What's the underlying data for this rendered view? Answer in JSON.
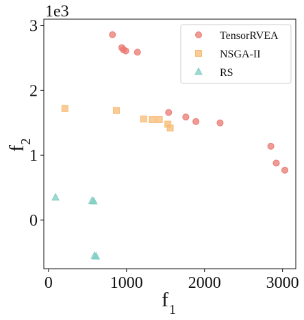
{
  "chart_data": {
    "type": "scatter",
    "title": "",
    "xlabel": "f",
    "xlabel_sub": "1",
    "ylabel": "f",
    "ylabel_sub": "2",
    "y_scale_label": "1e3",
    "xlim": [
      -60,
      3170
    ],
    "ylim": [
      -0.75,
      3.1
    ],
    "xticks": [
      0,
      1000,
      2000,
      3000
    ],
    "yticks": [
      0,
      1,
      2,
      3
    ],
    "xtick_labels": [
      "0",
      "1000",
      "2000",
      "3000"
    ],
    "ytick_labels": [
      "0",
      "1",
      "2",
      "3"
    ],
    "grid": false,
    "legend_position": "top-right",
    "series": [
      {
        "name": "TensorRVEA",
        "marker": "circle",
        "color": "#ea7a72",
        "x": [
          820,
          940,
          960,
          990,
          1140,
          1540,
          1760,
          1890,
          2200,
          2850,
          2920,
          3030
        ],
        "y": [
          2.86,
          2.66,
          2.63,
          2.61,
          2.59,
          1.66,
          1.59,
          1.52,
          1.5,
          1.14,
          0.88,
          0.77
        ]
      },
      {
        "name": "NSGA-II",
        "marker": "square",
        "color": "#f7bb74",
        "x": [
          210,
          870,
          1220,
          1330,
          1420,
          1530,
          1560
        ],
        "y": [
          1.72,
          1.69,
          1.56,
          1.55,
          1.55,
          1.48,
          1.42
        ]
      },
      {
        "name": "RS",
        "marker": "triangle",
        "color": "#7fcdc3",
        "x": [
          90,
          560,
          580,
          590,
          610
        ],
        "y": [
          0.35,
          0.3,
          0.29,
          -0.55,
          -0.56
        ]
      }
    ]
  }
}
